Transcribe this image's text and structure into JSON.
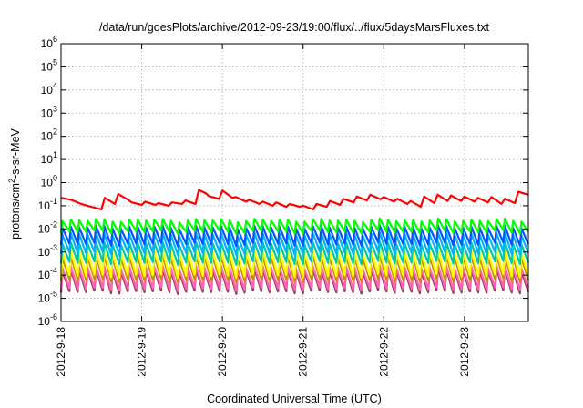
{
  "chart_data": {
    "type": "line",
    "title": "/data/run/goesPlots/archive/2012-09-23/19:00/flux/../flux/5daysMarsFluxes.txt",
    "xlabel": "Coordinated Universal Time (UTC)",
    "ylabel": "protons/cm2-s-sr-MeV",
    "ylabel_parts": {
      "before": "protons/cm",
      "sup": "2",
      "after": "-s-sr-MeV"
    },
    "y_scale": "log",
    "ylim": [
      1e-06,
      1000000.0
    ],
    "xlim": [
      "2012-09-18T00:00",
      "2012-09-23T19:00"
    ],
    "x_ticks": [
      {
        "x": "2012-09-18T00:00",
        "label": "2012-9-18"
      },
      {
        "x": "2012-09-19T00:00",
        "label": "2012-9-19"
      },
      {
        "x": "2012-09-20T00:00",
        "label": "2012-9-20"
      },
      {
        "x": "2012-09-21T00:00",
        "label": "2012-9-21"
      },
      {
        "x": "2012-09-22T00:00",
        "label": "2012-9-22"
      },
      {
        "x": "2012-09-23T00:00",
        "label": "2012-9-23"
      }
    ],
    "y_ticks": [
      {
        "base": "10",
        "exp": "-6",
        "value": 1e-06
      },
      {
        "base": "10",
        "exp": "-5",
        "value": 1e-05
      },
      {
        "base": "10",
        "exp": "-4",
        "value": 0.0001
      },
      {
        "base": "10",
        "exp": "-3",
        "value": 0.001
      },
      {
        "base": "10",
        "exp": "-2",
        "value": 0.01
      },
      {
        "base": "10",
        "exp": "-1",
        "value": 0.1
      },
      {
        "base": "10",
        "exp": "0",
        "value": 1
      },
      {
        "base": "10",
        "exp": "1",
        "value": 10
      },
      {
        "base": "10",
        "exp": "2",
        "value": 100
      },
      {
        "base": "10",
        "exp": "3",
        "value": 1000
      },
      {
        "base": "10",
        "exp": "4",
        "value": 10000
      },
      {
        "base": "10",
        "exp": "5",
        "value": 100000
      },
      {
        "base": "10",
        "exp": "6",
        "value": 1000000
      }
    ],
    "grid": true,
    "legend": "none",
    "series": [
      {
        "color": "#ff0000",
        "x": [
          "2012-09-18T00:00",
          "2012-09-18T03:00",
          "2012-09-18T06:00",
          "2012-09-18T09:00",
          "2012-09-18T12:00",
          "2012-09-18T13:00",
          "2012-09-18T16:00",
          "2012-09-18T17:00",
          "2012-09-18T20:00",
          "2012-09-18T21:00",
          "2012-09-19T00:00",
          "2012-09-19T01:00",
          "2012-09-19T04:00",
          "2012-09-19T05:00",
          "2012-09-19T08:00",
          "2012-09-19T09:00",
          "2012-09-19T12:00",
          "2012-09-19T13:00",
          "2012-09-19T16:00",
          "2012-09-19T17:00",
          "2012-09-19T19:00",
          "2012-09-19T20:00",
          "2012-09-19T23:00",
          "2012-09-20T00:00",
          "2012-09-20T03:00",
          "2012-09-20T04:00",
          "2012-09-20T07:00",
          "2012-09-20T08:00",
          "2012-09-20T11:00",
          "2012-09-20T12:00",
          "2012-09-20T15:00",
          "2012-09-20T16:00",
          "2012-09-20T19:00",
          "2012-09-20T20:00",
          "2012-09-20T23:00",
          "2012-09-21T00:00",
          "2012-09-21T03:00",
          "2012-09-21T04:00",
          "2012-09-21T07:00",
          "2012-09-21T08:00",
          "2012-09-21T11:00",
          "2012-09-21T12:00",
          "2012-09-21T15:00",
          "2012-09-21T16:00",
          "2012-09-21T19:00",
          "2012-09-21T20:00",
          "2012-09-21T23:00",
          "2012-09-22T00:00",
          "2012-09-22T03:00",
          "2012-09-22T04:00",
          "2012-09-22T07:00",
          "2012-09-22T08:00",
          "2012-09-22T11:00",
          "2012-09-22T12:00",
          "2012-09-22T15:00",
          "2012-09-22T16:00",
          "2012-09-22T19:00",
          "2012-09-22T20:00",
          "2012-09-22T23:00",
          "2012-09-23T00:00",
          "2012-09-23T03:00",
          "2012-09-23T04:00",
          "2012-09-23T07:00",
          "2012-09-23T08:00",
          "2012-09-23T11:00",
          "2012-09-23T12:00",
          "2012-09-23T15:00",
          "2012-09-23T16:00",
          "2012-09-23T19:00"
        ],
        "values": [
          0.22,
          0.18,
          0.12,
          0.09,
          0.07,
          0.22,
          0.12,
          0.32,
          0.18,
          0.14,
          0.11,
          0.15,
          0.11,
          0.13,
          0.1,
          0.14,
          0.12,
          0.17,
          0.12,
          0.48,
          0.35,
          0.26,
          0.2,
          0.45,
          0.22,
          0.24,
          0.15,
          0.18,
          0.12,
          0.15,
          0.1,
          0.14,
          0.09,
          0.12,
          0.09,
          0.1,
          0.07,
          0.12,
          0.09,
          0.16,
          0.11,
          0.2,
          0.14,
          0.25,
          0.17,
          0.3,
          0.19,
          0.24,
          0.15,
          0.2,
          0.12,
          0.16,
          0.09,
          0.25,
          0.13,
          0.3,
          0.16,
          0.28,
          0.16,
          0.25,
          0.15,
          0.22,
          0.14,
          0.24,
          0.12,
          0.2,
          0.13,
          0.4,
          0.3
        ]
      },
      {
        "color": "#00ff00",
        "high": 0.024,
        "low": 0.0075,
        "count": 56
      },
      {
        "color": "#0055ff",
        "high": 0.012,
        "low": 0.0022,
        "count": 56
      },
      {
        "color": "#00b3ff",
        "high": 0.006,
        "low": 0.0009,
        "count": 56
      },
      {
        "color": "#00c8a0",
        "high": 0.0024,
        "low": 0.00035,
        "count": 56
      },
      {
        "color": "#ffff00",
        "high": 0.0011,
        "low": 9.5e-05,
        "count": 56
      },
      {
        "color": "#c89000",
        "high": 0.00065,
        "low": 6e-05,
        "count": 56
      },
      {
        "color": "#ff66aa",
        "high": 0.00022,
        "low": 2.6e-05,
        "count": 56
      },
      {
        "color": "#9b3868",
        "high": 0.00016,
        "low": 1.9e-05,
        "count": 56
      }
    ]
  }
}
